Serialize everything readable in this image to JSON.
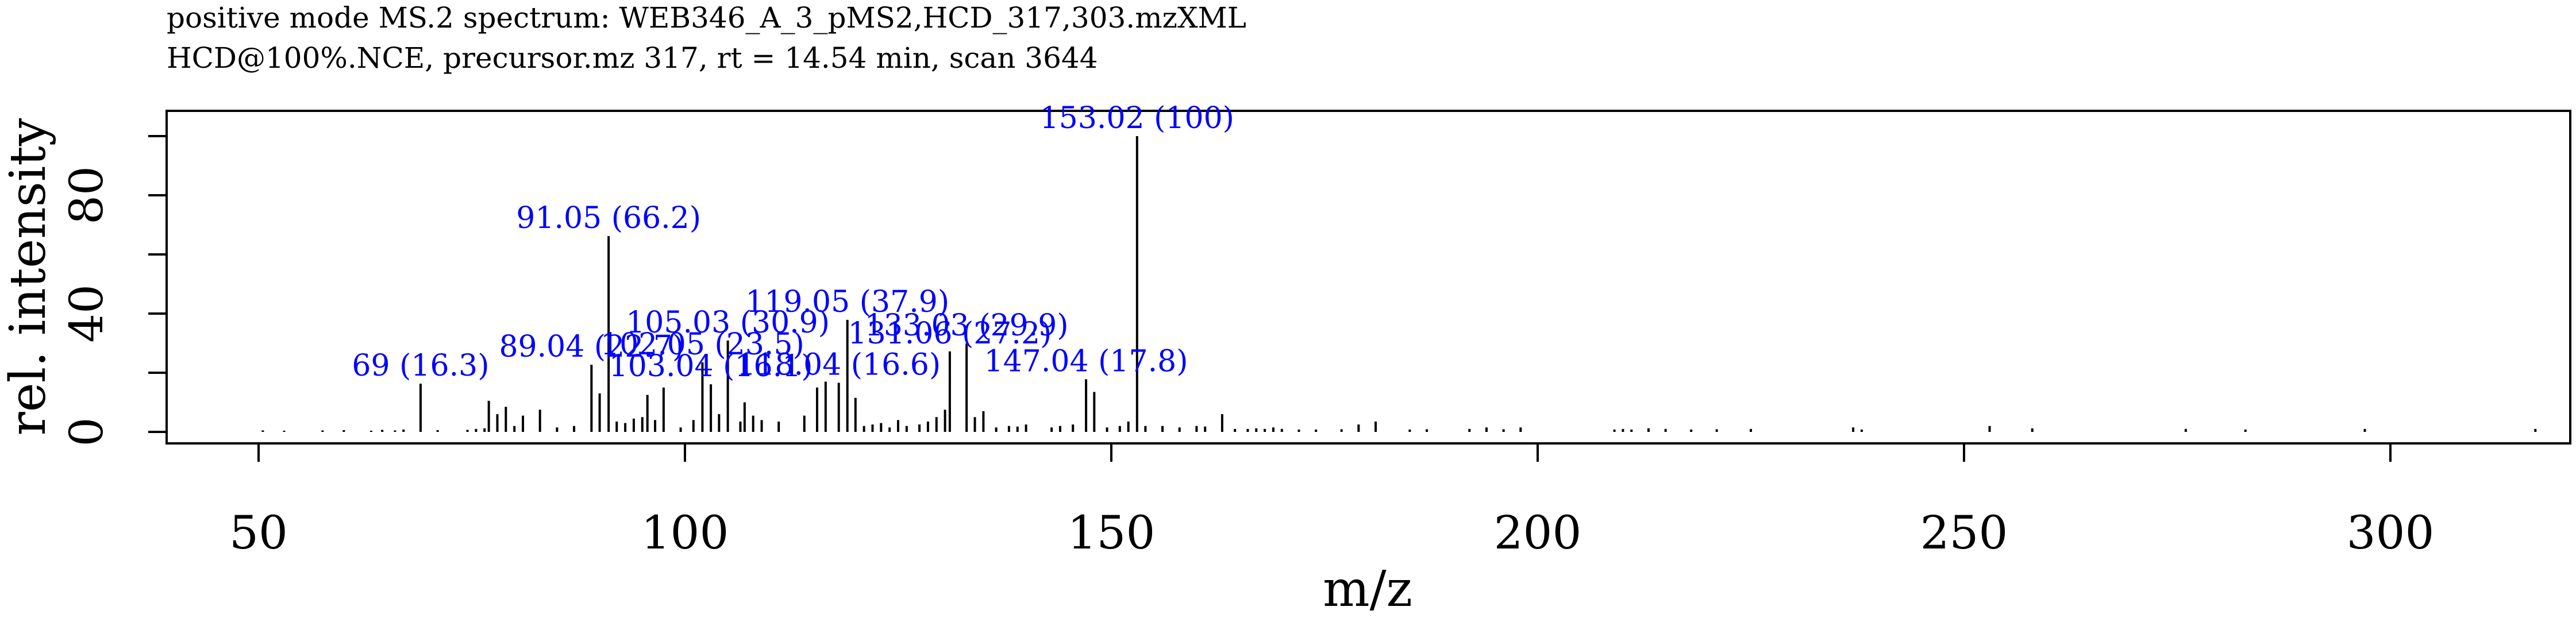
{
  "header": {
    "title": "positive mode MS.2 spectrum: WEB346_A_3_pMS2,HCD_317,303.mzXML",
    "subtitle": "HCD@100%.NCE, precursor.mz 317, rt = 14.54 min, scan 3644"
  },
  "chart_data": {
    "type": "bar",
    "style": "stick spectrum",
    "title": "positive mode MS.2 spectrum: WEB346_A_3_pMS2,HCD_317,303.mzXML",
    "subtitle": "HCD@100%.NCE, precursor.mz 317, rt = 14.54 min, scan 3644",
    "xlabel": "m/z",
    "ylabel": "rel. intensity",
    "xlim": [
      40,
      320
    ],
    "ylim": [
      0,
      105
    ],
    "x_ticks": [
      50,
      100,
      150,
      200,
      250,
      300
    ],
    "y_ticks": [
      0,
      20,
      40,
      60,
      80,
      100
    ],
    "y_tick_labels": [
      0,
      40,
      80
    ],
    "grid": false,
    "legend": "none",
    "colors": {
      "sticks": "#000000",
      "labels": "#0000ff"
    },
    "peaks": [
      {
        "mz": 50.5,
        "intensity": 0.5
      },
      {
        "mz": 53.0,
        "intensity": 0.4
      },
      {
        "mz": 57.5,
        "intensity": 0.5
      },
      {
        "mz": 60.0,
        "intensity": 0.6
      },
      {
        "mz": 63.2,
        "intensity": 0.4
      },
      {
        "mz": 64.5,
        "intensity": 0.7
      },
      {
        "mz": 66.0,
        "intensity": 0.5
      },
      {
        "mz": 67.0,
        "intensity": 0.8
      },
      {
        "mz": 69.0,
        "intensity": 16.3
      },
      {
        "mz": 71.0,
        "intensity": 0.6
      },
      {
        "mz": 74.5,
        "intensity": 0.7
      },
      {
        "mz": 75.5,
        "intensity": 1.0
      },
      {
        "mz": 76.5,
        "intensity": 1.2
      },
      {
        "mz": 77.0,
        "intensity": 10.5
      },
      {
        "mz": 78.0,
        "intensity": 6.0
      },
      {
        "mz": 79.0,
        "intensity": 8.5
      },
      {
        "mz": 80.0,
        "intensity": 2.0
      },
      {
        "mz": 81.0,
        "intensity": 5.5
      },
      {
        "mz": 83.0,
        "intensity": 7.5
      },
      {
        "mz": 85.0,
        "intensity": 1.5
      },
      {
        "mz": 87.0,
        "intensity": 2.0
      },
      {
        "mz": 89.04,
        "intensity": 22.7
      },
      {
        "mz": 90.0,
        "intensity": 13.0
      },
      {
        "mz": 91.05,
        "intensity": 66.2
      },
      {
        "mz": 92.0,
        "intensity": 3.5
      },
      {
        "mz": 93.0,
        "intensity": 3.0
      },
      {
        "mz": 94.0,
        "intensity": 4.5
      },
      {
        "mz": 95.0,
        "intensity": 5.0
      },
      {
        "mz": 95.6,
        "intensity": 12.5
      },
      {
        "mz": 96.5,
        "intensity": 4.0
      },
      {
        "mz": 97.5,
        "intensity": 15.0
      },
      {
        "mz": 99.5,
        "intensity": 1.5
      },
      {
        "mz": 101.0,
        "intensity": 4.0
      },
      {
        "mz": 102.05,
        "intensity": 23.5
      },
      {
        "mz": 103.04,
        "intensity": 16.1
      },
      {
        "mz": 104.0,
        "intensity": 6.0
      },
      {
        "mz": 105.03,
        "intensity": 30.9
      },
      {
        "mz": 106.5,
        "intensity": 3.5
      },
      {
        "mz": 107.0,
        "intensity": 10.0
      },
      {
        "mz": 108.0,
        "intensity": 5.5
      },
      {
        "mz": 109.0,
        "intensity": 4.0
      },
      {
        "mz": 111.0,
        "intensity": 3.5
      },
      {
        "mz": 114.0,
        "intensity": 5.5
      },
      {
        "mz": 115.5,
        "intensity": 15.0
      },
      {
        "mz": 116.5,
        "intensity": 17.0
      },
      {
        "mz": 118.04,
        "intensity": 16.6
      },
      {
        "mz": 119.05,
        "intensity": 37.9
      },
      {
        "mz": 120.0,
        "intensity": 11.5
      },
      {
        "mz": 121.0,
        "intensity": 2.0
      },
      {
        "mz": 122.0,
        "intensity": 2.5
      },
      {
        "mz": 123.0,
        "intensity": 3.0
      },
      {
        "mz": 124.0,
        "intensity": 1.5
      },
      {
        "mz": 125.0,
        "intensity": 4.0
      },
      {
        "mz": 126.0,
        "intensity": 2.0
      },
      {
        "mz": 127.5,
        "intensity": 2.5
      },
      {
        "mz": 128.5,
        "intensity": 3.5
      },
      {
        "mz": 129.5,
        "intensity": 5.0
      },
      {
        "mz": 130.5,
        "intensity": 7.5
      },
      {
        "mz": 131.06,
        "intensity": 27.2
      },
      {
        "mz": 133.03,
        "intensity": 29.9
      },
      {
        "mz": 134.0,
        "intensity": 5.0
      },
      {
        "mz": 135.0,
        "intensity": 7.0
      },
      {
        "mz": 136.5,
        "intensity": 1.5
      },
      {
        "mz": 138.0,
        "intensity": 2.0
      },
      {
        "mz": 139.0,
        "intensity": 1.8
      },
      {
        "mz": 140.0,
        "intensity": 2.5
      },
      {
        "mz": 143.0,
        "intensity": 1.5
      },
      {
        "mz": 144.0,
        "intensity": 2.0
      },
      {
        "mz": 145.5,
        "intensity": 2.5
      },
      {
        "mz": 147.04,
        "intensity": 17.8
      },
      {
        "mz": 148.0,
        "intensity": 13.5
      },
      {
        "mz": 149.5,
        "intensity": 1.5
      },
      {
        "mz": 151.0,
        "intensity": 2.0
      },
      {
        "mz": 152.0,
        "intensity": 3.5
      },
      {
        "mz": 153.02,
        "intensity": 100
      },
      {
        "mz": 154.0,
        "intensity": 2.0
      },
      {
        "mz": 156.0,
        "intensity": 2.0
      },
      {
        "mz": 158.0,
        "intensity": 1.5
      },
      {
        "mz": 160.0,
        "intensity": 2.0
      },
      {
        "mz": 161.0,
        "intensity": 1.8
      },
      {
        "mz": 163.0,
        "intensity": 6.0
      },
      {
        "mz": 164.5,
        "intensity": 1.0
      },
      {
        "mz": 166.0,
        "intensity": 1.0
      },
      {
        "mz": 167.0,
        "intensity": 1.2
      },
      {
        "mz": 168.0,
        "intensity": 1.0
      },
      {
        "mz": 169.0,
        "intensity": 1.5
      },
      {
        "mz": 170.0,
        "intensity": 1.0
      },
      {
        "mz": 172.0,
        "intensity": 0.8
      },
      {
        "mz": 174.0,
        "intensity": 0.8
      },
      {
        "mz": 177.0,
        "intensity": 0.9
      },
      {
        "mz": 179.0,
        "intensity": 2.5
      },
      {
        "mz": 181.0,
        "intensity": 3.5
      },
      {
        "mz": 185.0,
        "intensity": 0.8
      },
      {
        "mz": 187.0,
        "intensity": 0.9
      },
      {
        "mz": 192.0,
        "intensity": 1.0
      },
      {
        "mz": 194.0,
        "intensity": 1.5
      },
      {
        "mz": 196.0,
        "intensity": 0.9
      },
      {
        "mz": 198.0,
        "intensity": 1.5
      },
      {
        "mz": 209.0,
        "intensity": 0.8
      },
      {
        "mz": 210.0,
        "intensity": 1.0
      },
      {
        "mz": 211.0,
        "intensity": 0.8
      },
      {
        "mz": 213.0,
        "intensity": 1.2
      },
      {
        "mz": 215.0,
        "intensity": 1.0
      },
      {
        "mz": 218.0,
        "intensity": 0.8
      },
      {
        "mz": 221.0,
        "intensity": 0.9
      },
      {
        "mz": 225.0,
        "intensity": 1.0
      },
      {
        "mz": 237.0,
        "intensity": 1.5
      },
      {
        "mz": 238.0,
        "intensity": 0.8
      },
      {
        "mz": 253.0,
        "intensity": 2.0
      },
      {
        "mz": 258.0,
        "intensity": 1.2
      },
      {
        "mz": 276.0,
        "intensity": 1.0
      },
      {
        "mz": 283.0,
        "intensity": 0.8
      },
      {
        "mz": 297.0,
        "intensity": 1.0
      },
      {
        "mz": 317.0,
        "intensity": 1.0
      }
    ],
    "annotations": [
      {
        "mz": 69.0,
        "intensity": 16.3,
        "text": "69 (16.3)"
      },
      {
        "mz": 89.04,
        "intensity": 22.7,
        "text": "89.04 (22.7)"
      },
      {
        "mz": 91.05,
        "intensity": 66.2,
        "text": "91.05 (66.2)"
      },
      {
        "mz": 102.05,
        "intensity": 23.5,
        "text": "102.05 (23.5)"
      },
      {
        "mz": 103.04,
        "intensity": 16.1,
        "text": "103.04 (16.1)"
      },
      {
        "mz": 105.03,
        "intensity": 30.9,
        "text": "105.03 (30.9)"
      },
      {
        "mz": 118.04,
        "intensity": 16.6,
        "text": "118.04 (16.6)"
      },
      {
        "mz": 119.05,
        "intensity": 37.9,
        "text": "119.05 (37.9)"
      },
      {
        "mz": 131.06,
        "intensity": 27.2,
        "text": "131.06 (27.2)"
      },
      {
        "mz": 133.03,
        "intensity": 29.9,
        "text": "133.03 (29.9)"
      },
      {
        "mz": 147.04,
        "intensity": 17.8,
        "text": "147.04 (17.8)"
      },
      {
        "mz": 153.02,
        "intensity": 100,
        "text": "153.02 (100)"
      }
    ]
  }
}
